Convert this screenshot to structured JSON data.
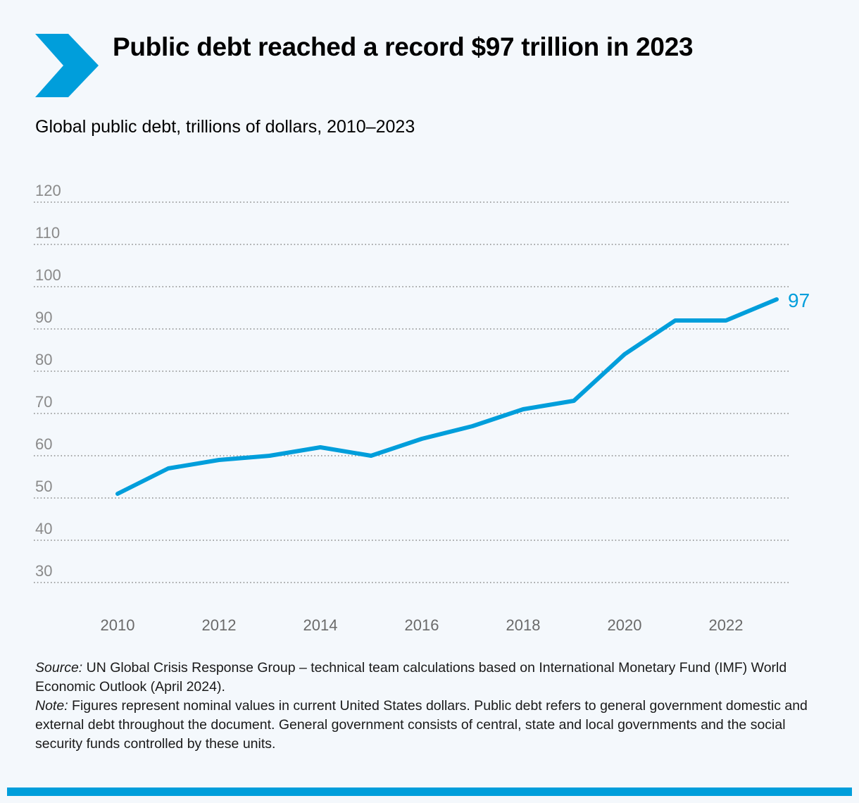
{
  "header": {
    "title": "Public debt reached a record $97 trillion in 2023",
    "subtitle": "Global public debt, trillions of dollars, 2010–2023",
    "accent_color": "#009edb",
    "icon": "chevron-right-icon"
  },
  "chart_data": {
    "type": "line",
    "x": [
      2010,
      2011,
      2012,
      2013,
      2014,
      2015,
      2016,
      2017,
      2018,
      2019,
      2020,
      2021,
      2022,
      2023
    ],
    "series": [
      {
        "values": [
          51,
          57,
          59,
          60,
          62,
          60,
          64,
          67,
          71,
          73,
          84,
          92,
          92,
          97
        ],
        "color": "#009edb"
      }
    ],
    "end_label": "97",
    "ylim": [
      30,
      120
    ],
    "yticks": [
      30,
      40,
      50,
      60,
      70,
      80,
      90,
      100,
      110,
      120
    ],
    "xticks": [
      2010,
      2012,
      2014,
      2016,
      2018,
      2020,
      2022
    ],
    "grid": "horizontal-dotted",
    "legend": "none"
  },
  "notes": {
    "source_label": "Source:",
    "source_text": " UN Global Crisis Response Group – technical team calculations based on International Monetary Fund (IMF) World Economic Outlook (April 2024).",
    "note_label": "Note:",
    "note_text": " Figures represent nominal values in current United States dollars. Public debt refers to general government domestic and external debt throughout the document. General government consists of central, state and local governments and the social security funds controlled by these units."
  }
}
